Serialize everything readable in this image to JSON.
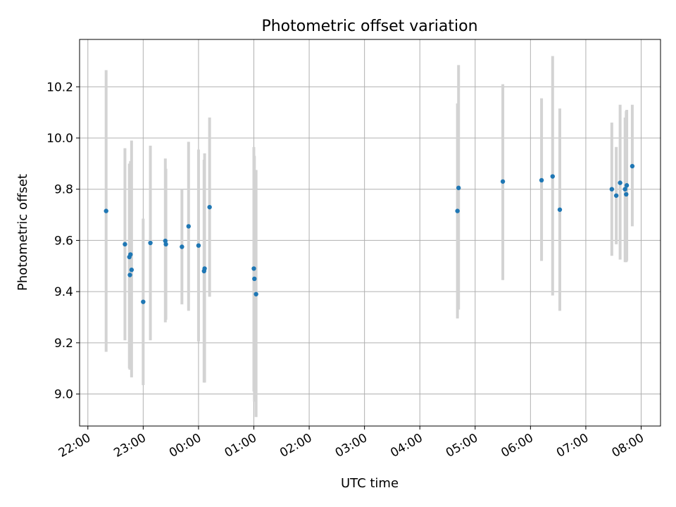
{
  "chart_data": {
    "type": "scatter",
    "title": "Photometric offset variation",
    "xlabel": "UTC time",
    "ylabel": "Photometric offset",
    "x_axis": "time (hours relative to 00:00 UTC; negative = previous day)",
    "xlim": [
      -2.15,
      8.35
    ],
    "ylim": [
      8.875,
      10.385
    ],
    "x_ticks": [
      {
        "value": -2,
        "label": "22:00"
      },
      {
        "value": -1,
        "label": "23:00"
      },
      {
        "value": 0,
        "label": "00:00"
      },
      {
        "value": 1,
        "label": "01:00"
      },
      {
        "value": 2,
        "label": "02:00"
      },
      {
        "value": 3,
        "label": "03:00"
      },
      {
        "value": 4,
        "label": "04:00"
      },
      {
        "value": 5,
        "label": "05:00"
      },
      {
        "value": 6,
        "label": "06:00"
      },
      {
        "value": 7,
        "label": "07:00"
      },
      {
        "value": 8,
        "label": "08:00"
      }
    ],
    "y_ticks": [
      {
        "value": 9.0,
        "label": "9.0"
      },
      {
        "value": 9.2,
        "label": "9.2"
      },
      {
        "value": 9.4,
        "label": "9.4"
      },
      {
        "value": 9.6,
        "label": "9.6"
      },
      {
        "value": 9.8,
        "label": "9.8"
      },
      {
        "value": 10.0,
        "label": "10.0"
      },
      {
        "value": 10.2,
        "label": "10.2"
      }
    ],
    "grid": true,
    "marker_color": "#1f77b4",
    "errorbar_color": "#d3d3d3",
    "series": [
      {
        "points": [
          {
            "x": -1.67,
            "y": 9.715,
            "lo": 9.165,
            "hi": 10.265
          },
          {
            "x": -1.33,
            "y": 9.585,
            "lo": 9.21,
            "hi": 9.96
          },
          {
            "x": -1.25,
            "y": 9.535,
            "lo": 9.1,
            "hi": 9.9
          },
          {
            "x": -1.23,
            "y": 9.545,
            "lo": 9.16,
            "hi": 9.91
          },
          {
            "x": -1.24,
            "y": 9.465,
            "lo": 9.095,
            "hi": 9.83
          },
          {
            "x": -1.21,
            "y": 9.485,
            "lo": 9.065,
            "hi": 9.99
          },
          {
            "x": -1.0,
            "y": 9.36,
            "lo": 9.035,
            "hi": 9.685
          },
          {
            "x": -0.87,
            "y": 9.59,
            "lo": 9.21,
            "hi": 9.97
          },
          {
            "x": -0.6,
            "y": 9.598,
            "lo": 9.28,
            "hi": 9.92
          },
          {
            "x": -0.59,
            "y": 9.585,
            "lo": 9.29,
            "hi": 9.88
          },
          {
            "x": -0.3,
            "y": 9.575,
            "lo": 9.35,
            "hi": 9.8
          },
          {
            "x": -0.18,
            "y": 9.655,
            "lo": 9.325,
            "hi": 9.985
          },
          {
            "x": 0.0,
            "y": 9.58,
            "lo": 9.205,
            "hi": 9.955
          },
          {
            "x": 0.1,
            "y": 9.48,
            "lo": 9.045,
            "hi": 9.915
          },
          {
            "x": 0.11,
            "y": 9.49,
            "lo": 9.045,
            "hi": 9.94
          },
          {
            "x": 0.2,
            "y": 9.73,
            "lo": 9.38,
            "hi": 10.08
          },
          {
            "x": 1.0,
            "y": 9.49,
            "lo": 9.01,
            "hi": 9.965
          },
          {
            "x": 1.01,
            "y": 9.45,
            "lo": 8.97,
            "hi": 9.93
          },
          {
            "x": 1.04,
            "y": 9.39,
            "lo": 8.91,
            "hi": 9.875
          },
          {
            "x": 4.68,
            "y": 9.715,
            "lo": 9.295,
            "hi": 10.135
          },
          {
            "x": 4.7,
            "y": 9.805,
            "lo": 9.33,
            "hi": 10.285
          },
          {
            "x": 5.5,
            "y": 9.83,
            "lo": 9.445,
            "hi": 10.21
          },
          {
            "x": 6.2,
            "y": 9.835,
            "lo": 9.52,
            "hi": 10.155
          },
          {
            "x": 6.4,
            "y": 9.85,
            "lo": 9.385,
            "hi": 10.32
          },
          {
            "x": 6.53,
            "y": 9.72,
            "lo": 9.325,
            "hi": 10.115
          },
          {
            "x": 7.47,
            "y": 9.8,
            "lo": 9.54,
            "hi": 10.06
          },
          {
            "x": 7.55,
            "y": 9.775,
            "lo": 9.585,
            "hi": 9.965
          },
          {
            "x": 7.62,
            "y": 9.825,
            "lo": 9.525,
            "hi": 10.13
          },
          {
            "x": 7.71,
            "y": 9.8,
            "lo": 9.515,
            "hi": 10.08
          },
          {
            "x": 7.73,
            "y": 9.78,
            "lo": 9.515,
            "hi": 10.105
          },
          {
            "x": 7.74,
            "y": 9.815,
            "lo": 9.52,
            "hi": 10.11
          },
          {
            "x": 7.84,
            "y": 9.89,
            "lo": 9.655,
            "hi": 10.13
          }
        ]
      }
    ]
  }
}
